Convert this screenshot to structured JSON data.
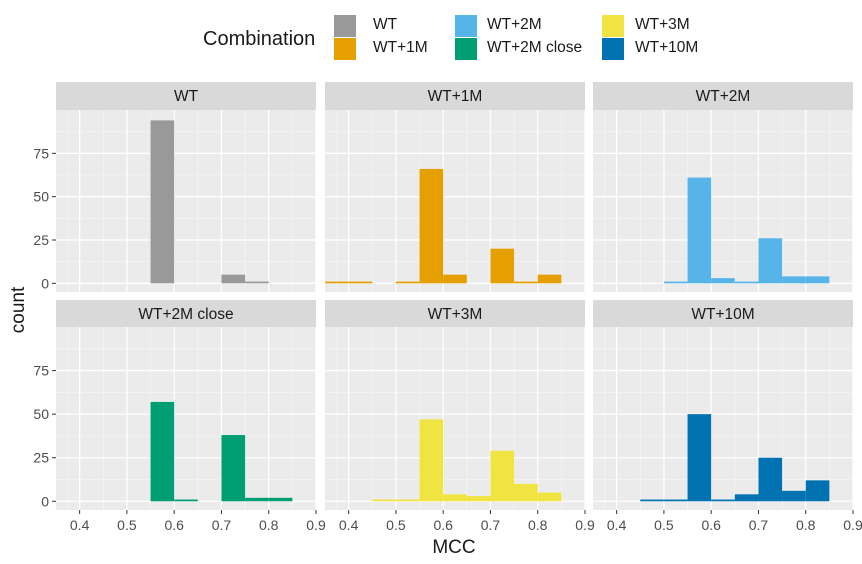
{
  "legend": {
    "title": "Combination",
    "items": [
      {
        "label": "WT",
        "color": "#999999"
      },
      {
        "label": "WT+1M",
        "color": "#E69F00"
      },
      {
        "label": "WT+2M",
        "color": "#56B4E9"
      },
      {
        "label": "WT+2M close",
        "color": "#009E73"
      },
      {
        "label": "WT+3M",
        "color": "#F0E442"
      },
      {
        "label": "WT+10M",
        "color": "#0072B2"
      }
    ]
  },
  "chart_data": {
    "type": "bar",
    "xlabel": "MCC",
    "ylabel": "count",
    "xlim": [
      0.35,
      0.9
    ],
    "ylim": [
      -5,
      100
    ],
    "xticks": [
      "0.4",
      "0.5",
      "0.6",
      "0.7",
      "0.8",
      "0.9"
    ],
    "yticks": [
      "0",
      "25",
      "50",
      "75"
    ],
    "bin_width": 0.05,
    "bin_edges_start": 0.35,
    "grid": true,
    "legend_position": "top",
    "facets": [
      {
        "name": "WT",
        "color": "#999999",
        "bins": [
          [
            0.575,
            94
          ],
          [
            0.725,
            5
          ],
          [
            0.775,
            1
          ]
        ]
      },
      {
        "name": "WT+1M",
        "color": "#E69F00",
        "bins": [
          [
            0.375,
            1
          ],
          [
            0.425,
            1
          ],
          [
            0.525,
            1
          ],
          [
            0.575,
            66
          ],
          [
            0.625,
            5
          ],
          [
            0.725,
            20
          ],
          [
            0.775,
            1
          ],
          [
            0.825,
            5
          ]
        ]
      },
      {
        "name": "WT+2M",
        "color": "#56B4E9",
        "bins": [
          [
            0.525,
            1
          ],
          [
            0.575,
            61
          ],
          [
            0.625,
            3
          ],
          [
            0.675,
            1
          ],
          [
            0.725,
            26
          ],
          [
            0.775,
            4
          ],
          [
            0.825,
            4
          ]
        ]
      },
      {
        "name": "WT+2M close",
        "color": "#009E73",
        "bins": [
          [
            0.575,
            57
          ],
          [
            0.625,
            1
          ],
          [
            0.725,
            38
          ],
          [
            0.775,
            2
          ],
          [
            0.825,
            2
          ]
        ]
      },
      {
        "name": "WT+3M",
        "color": "#F0E442",
        "bins": [
          [
            0.475,
            1
          ],
          [
            0.525,
            1
          ],
          [
            0.575,
            47
          ],
          [
            0.625,
            4
          ],
          [
            0.675,
            3
          ],
          [
            0.725,
            29
          ],
          [
            0.775,
            10
          ],
          [
            0.825,
            5
          ]
        ]
      },
      {
        "name": "WT+10M",
        "color": "#0072B2",
        "bins": [
          [
            0.475,
            1
          ],
          [
            0.525,
            1
          ],
          [
            0.575,
            50
          ],
          [
            0.625,
            1
          ],
          [
            0.675,
            4
          ],
          [
            0.725,
            25
          ],
          [
            0.775,
            6
          ],
          [
            0.825,
            12
          ]
        ]
      }
    ]
  }
}
